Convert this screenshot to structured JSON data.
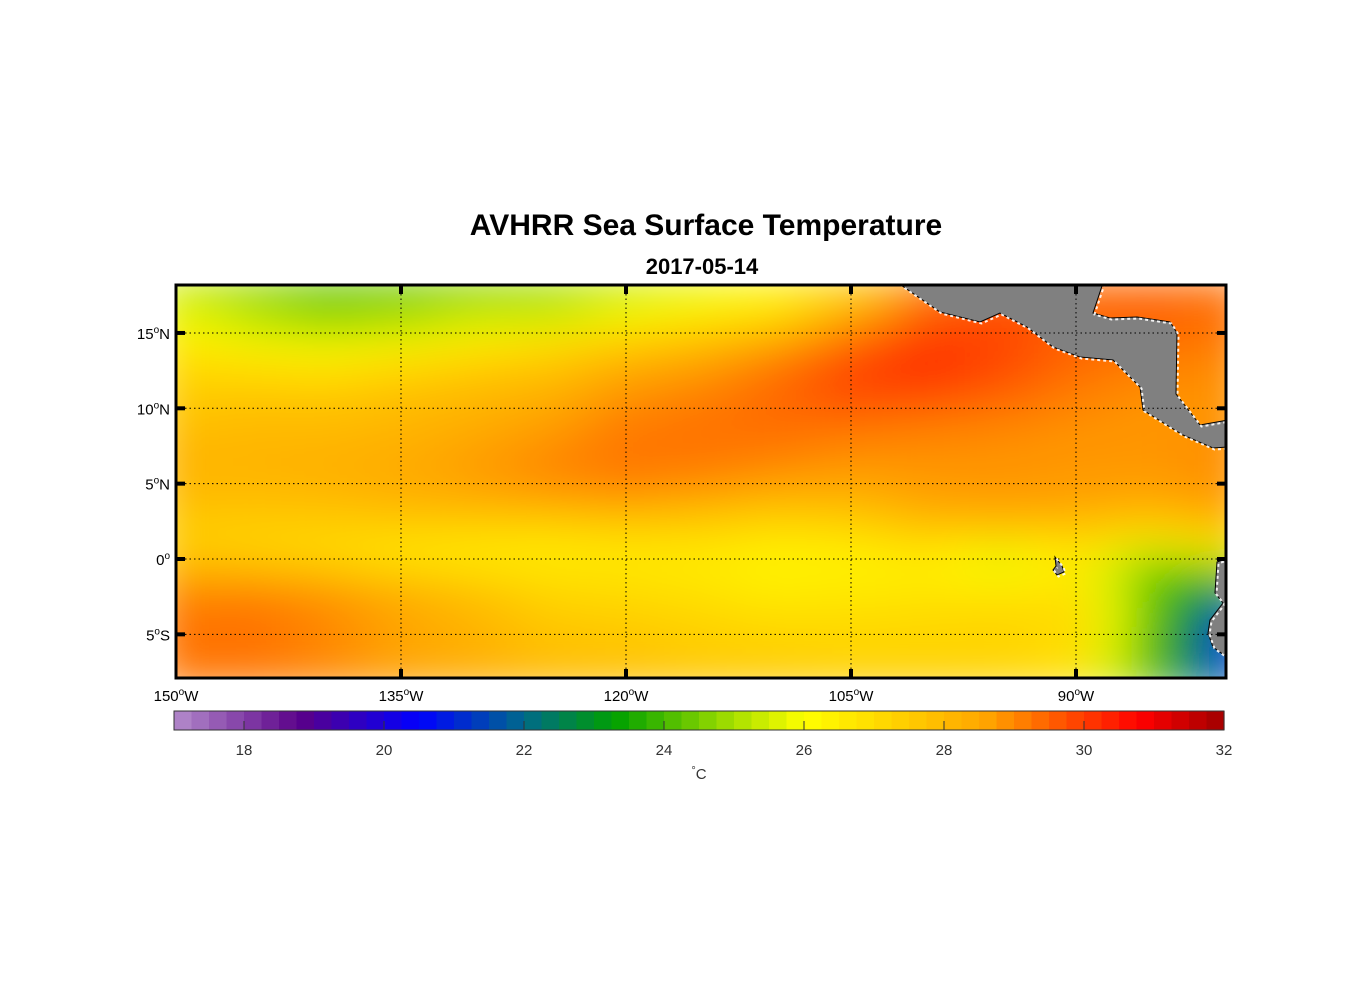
{
  "chart_data": {
    "type": "heatmap",
    "title": "AVHRR Sea Surface Temperature",
    "subtitle": "2017-05-14",
    "xlim": [
      -150,
      -80
    ],
    "ylim": [
      -8,
      18.2
    ],
    "x_ticks": [
      {
        "value": -150,
        "label": "150",
        "suffix": "W"
      },
      {
        "value": -135,
        "label": "135",
        "suffix": "W"
      },
      {
        "value": -120,
        "label": "120",
        "suffix": "W"
      },
      {
        "value": -105,
        "label": "105",
        "suffix": "W"
      },
      {
        "value": -90,
        "label": "90",
        "suffix": "W"
      }
    ],
    "y_ticks": [
      {
        "value": 15,
        "label": "15",
        "suffix": "N"
      },
      {
        "value": 10,
        "label": "10",
        "suffix": "N"
      },
      {
        "value": 5,
        "label": "5",
        "suffix": "N"
      },
      {
        "value": 0,
        "label": "0",
        "suffix": ""
      },
      {
        "value": -5,
        "label": "5",
        "suffix": "S"
      }
    ],
    "degree_symbol": "o",
    "grid": true,
    "grid_lon": [
      -150,
      -145,
      -140,
      -135,
      -130,
      -125,
      -120,
      -115,
      -110,
      -105,
      -100,
      -95,
      -90,
      -85,
      -80
    ],
    "grid_lat": [
      18,
      16,
      14,
      12,
      10,
      8,
      6,
      4,
      2,
      0,
      -2,
      -4,
      -6,
      -8
    ],
    "values": [
      [
        25.3,
        24.8,
        24.3,
        24.3,
        24.6,
        24.8,
        25.2,
        25.6,
        26.2,
        27.2,
        29.3,
        29.6,
        29.3,
        29.4,
        29.3
      ],
      [
        25.8,
        25.0,
        24.5,
        24.8,
        25.2,
        25.3,
        26.0,
        26.6,
        27.0,
        28.5,
        29.5,
        29.8,
        29.5,
        29.6,
        29.4
      ],
      [
        26.8,
        26.3,
        26.0,
        26.3,
        26.8,
        27.2,
        27.8,
        28.2,
        28.8,
        29.6,
        30.2,
        29.9,
        29.5,
        29.3,
        29.1
      ],
      [
        27.3,
        27.3,
        27.2,
        27.5,
        27.8,
        28.0,
        28.6,
        28.9,
        29.4,
        30.0,
        30.2,
        29.8,
        29.3,
        29.0,
        28.9
      ],
      [
        27.6,
        27.8,
        27.8,
        28.0,
        28.2,
        28.5,
        29.0,
        29.2,
        29.4,
        29.6,
        29.5,
        29.3,
        29.0,
        28.8,
        28.8
      ],
      [
        28.0,
        28.1,
        28.1,
        28.2,
        28.5,
        28.8,
        29.2,
        29.3,
        29.3,
        29.1,
        29.0,
        28.9,
        28.8,
        28.8,
        28.9
      ],
      [
        28.2,
        28.2,
        28.3,
        28.5,
        28.8,
        29.1,
        29.3,
        29.2,
        29.0,
        28.8,
        28.8,
        28.8,
        28.8,
        28.8,
        28.9
      ],
      [
        28.0,
        28.0,
        28.1,
        28.3,
        28.5,
        28.7,
        28.8,
        28.6,
        28.3,
        28.3,
        28.7,
        28.8,
        28.7,
        28.6,
        28.8
      ],
      [
        27.4,
        27.3,
        27.3,
        27.4,
        27.3,
        27.2,
        27.4,
        27.3,
        27.0,
        27.2,
        27.8,
        27.9,
        27.8,
        27.5,
        28.0
      ],
      [
        27.6,
        27.4,
        27.0,
        26.5,
        26.4,
        26.4,
        26.5,
        26.5,
        26.3,
        26.3,
        26.4,
        25.5,
        26.4,
        24.8,
        25.5
      ],
      [
        29.0,
        29.0,
        28.8,
        28.4,
        27.8,
        27.2,
        27.0,
        26.8,
        26.5,
        26.6,
        26.7,
        26.7,
        26.8,
        24.2,
        23.0
      ],
      [
        29.2,
        29.3,
        29.0,
        28.6,
        28.1,
        27.5,
        27.4,
        27.2,
        27.0,
        27.0,
        27.1,
        27.2,
        27.0,
        24.5,
        21.2
      ],
      [
        29.3,
        29.3,
        29.0,
        28.6,
        28.3,
        27.9,
        27.8,
        27.5,
        27.4,
        27.3,
        27.3,
        27.3,
        27.0,
        24.0,
        21.0
      ],
      [
        29.2,
        29.2,
        29.0,
        28.7,
        28.4,
        28.0,
        27.8,
        27.6,
        27.5,
        27.3,
        27.3,
        27.2,
        26.8,
        24.2,
        21.5
      ]
    ],
    "colorbar": {
      "range": [
        17,
        32
      ],
      "ticks": [
        {
          "value": 18,
          "label": "18"
        },
        {
          "value": 20,
          "label": "20"
        },
        {
          "value": 22,
          "label": "22"
        },
        {
          "value": 24,
          "label": "24"
        },
        {
          "value": 26,
          "label": "26"
        },
        {
          "value": 28,
          "label": "28"
        },
        {
          "value": 30,
          "label": "30"
        },
        {
          "value": 32,
          "label": "32"
        }
      ],
      "label_degree": "°",
      "label_unit": "C",
      "colors": [
        {
          "v": 17,
          "c": "#b48ccc"
        },
        {
          "v": 18.8,
          "c": "#5a0088"
        },
        {
          "v": 20.5,
          "c": "#0000ff"
        },
        {
          "v": 22,
          "c": "#006a8a"
        },
        {
          "v": 23.3,
          "c": "#00a000"
        },
        {
          "v": 25,
          "c": "#a8e000"
        },
        {
          "v": 26,
          "c": "#ffff00"
        },
        {
          "v": 28.6,
          "c": "#ffa500"
        },
        {
          "v": 30.8,
          "c": "#ff0000"
        },
        {
          "v": 32,
          "c": "#a00000"
        }
      ]
    },
    "land_color": "#808080"
  }
}
